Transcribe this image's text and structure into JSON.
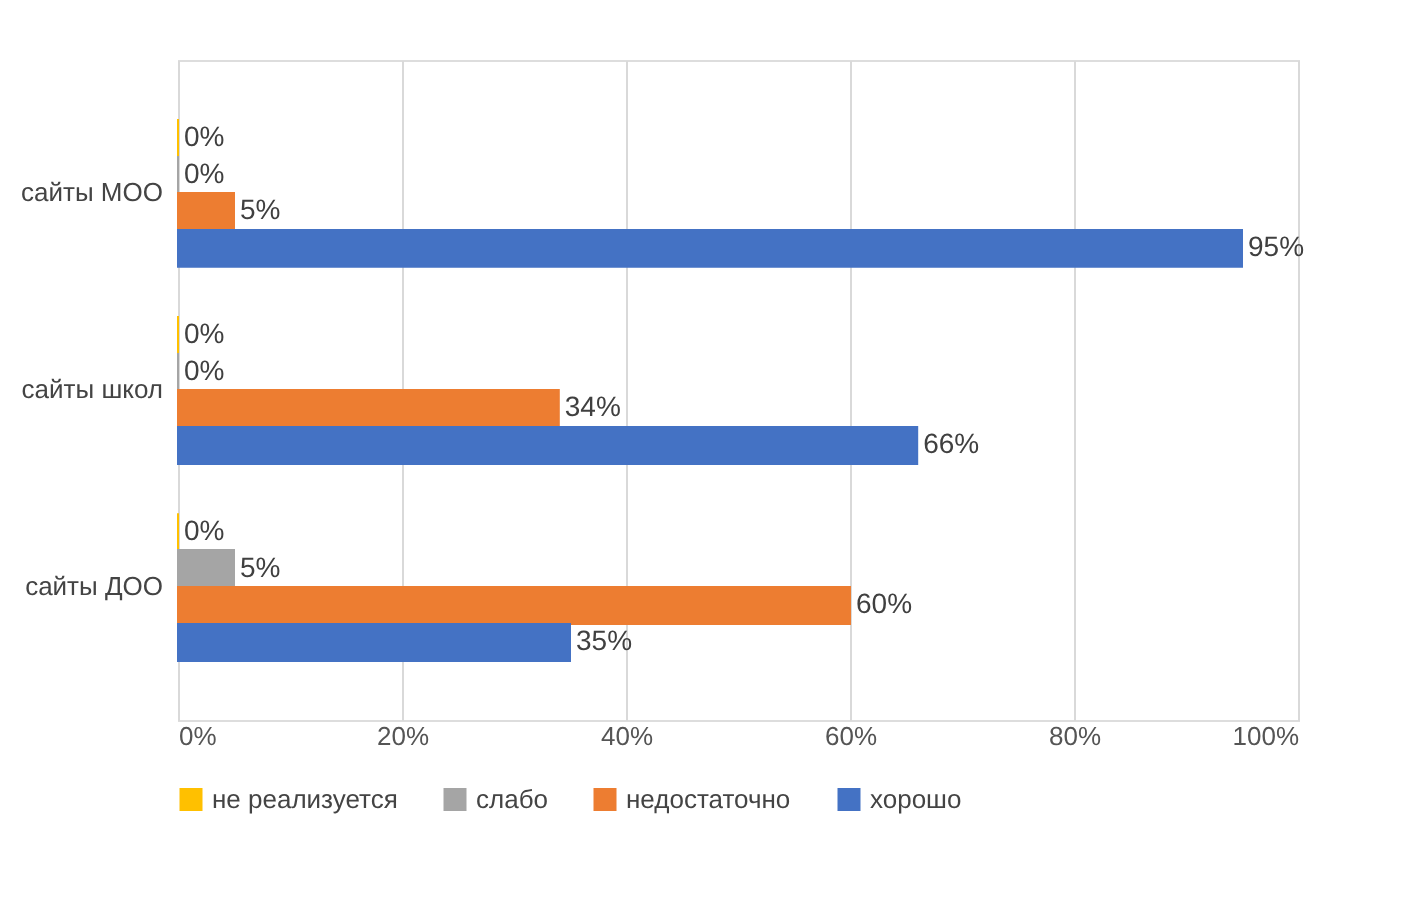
{
  "chart_data": {
    "type": "bar",
    "orientation": "horizontal",
    "categories": [
      "сайты МОО",
      "сайты школ",
      "сайты ДОО"
    ],
    "series": [
      {
        "name": "не реализуется",
        "color": "#ffc000",
        "values": [
          0,
          0,
          0
        ],
        "value_labels": [
          "0%",
          "0%",
          "0%"
        ]
      },
      {
        "name": "слабо",
        "color": "#a5a5a5",
        "values": [
          0,
          0,
          5
        ],
        "value_labels": [
          "0%",
          "0%",
          "5%"
        ]
      },
      {
        "name": "недостаточно",
        "color": "#ed7d31",
        "values": [
          5,
          34,
          60
        ],
        "value_labels": [
          "5%",
          "34%",
          "60%"
        ]
      },
      {
        "name": "хорошо",
        "color": "#4472c4",
        "values": [
          95,
          66,
          35
        ],
        "value_labels": [
          "95%",
          "66%",
          "35%"
        ]
      }
    ],
    "xlim": [
      0,
      100
    ],
    "xticks": [
      {
        "value": 0,
        "label": "0%"
      },
      {
        "value": 20,
        "label": "20%"
      },
      {
        "value": 40,
        "label": "40%"
      },
      {
        "value": 60,
        "label": "60%"
      },
      {
        "value": 80,
        "label": "80%"
      },
      {
        "value": 100,
        "label": "100%"
      }
    ],
    "grid": "x",
    "legend": "bottom"
  }
}
